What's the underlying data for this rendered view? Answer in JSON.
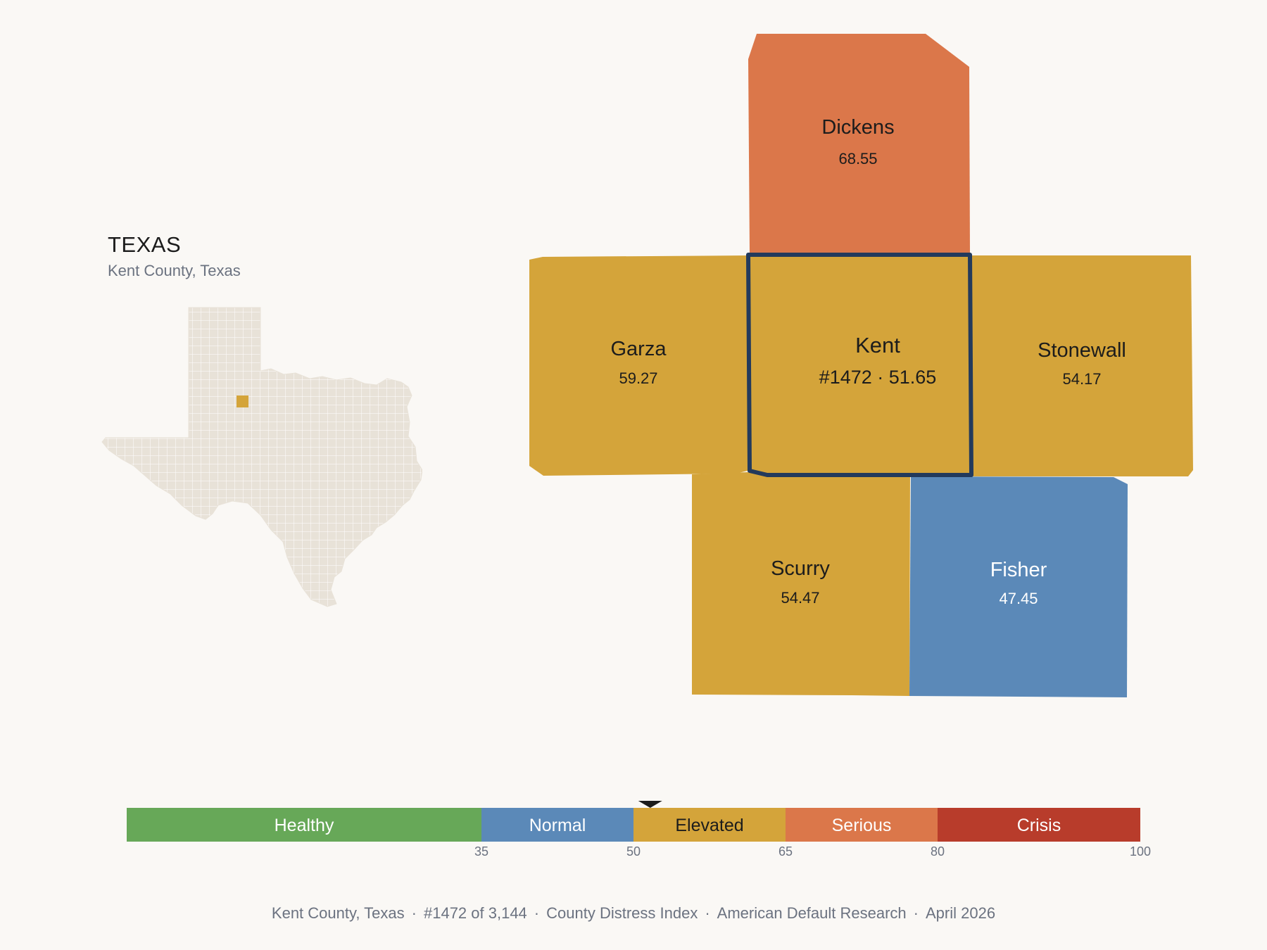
{
  "state": {
    "title": "TEXAS",
    "subtitle": "Kent County, Texas"
  },
  "counties": [
    {
      "id": "dickens",
      "name": "Dickens",
      "value": "68.55",
      "color": "#db774a"
    },
    {
      "id": "garza",
      "name": "Garza",
      "value": "59.27",
      "color": "#d4a43a"
    },
    {
      "id": "kent",
      "name": "Kent",
      "value": "#1472 · 51.65",
      "color": "#d4a43a",
      "focus": true
    },
    {
      "id": "stonewall",
      "name": "Stonewall",
      "value": "54.17",
      "color": "#d4a43a"
    },
    {
      "id": "scurry",
      "name": "Scurry",
      "value": "54.47",
      "color": "#d4a43a"
    },
    {
      "id": "fisher",
      "name": "Fisher",
      "value": "47.45",
      "color": "#5b89b8"
    }
  ],
  "scale": {
    "segments": [
      {
        "label": "Healthy",
        "from": 0,
        "to": 35,
        "color": "#67a858"
      },
      {
        "label": "Normal",
        "from": 35,
        "to": 50,
        "color": "#5b89b8"
      },
      {
        "label": "Elevated",
        "from": 50,
        "to": 65,
        "color": "#d4a43a"
      },
      {
        "label": "Serious",
        "from": 65,
        "to": 80,
        "color": "#db774a"
      },
      {
        "label": "Crisis",
        "from": 80,
        "to": 100,
        "color": "#b83c2b"
      }
    ],
    "ticks": [
      "35",
      "50",
      "65",
      "80",
      "100"
    ],
    "marker_value": 51.65
  },
  "footer": {
    "county": "Kent County, Texas",
    "rank": "#1472 of 3,144",
    "index": "County Distress Index",
    "source": "American Default Research",
    "date": "April 2026"
  }
}
